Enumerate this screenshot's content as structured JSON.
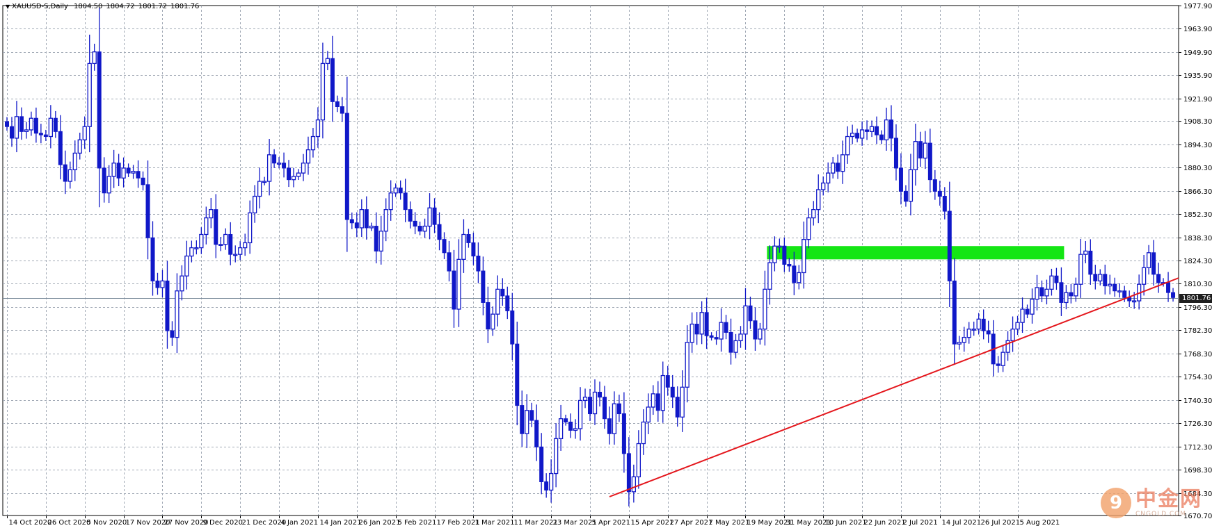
{
  "header": {
    "symbol": "XAUUSD-S,Daily",
    "open": "1804.50",
    "high": "1804.72",
    "low": "1801.72",
    "close": "1801.76"
  },
  "current_price_label": "1801.76",
  "watermark": {
    "cn": "中金网",
    "en": "CNGOLD.COM"
  },
  "colors": {
    "candle": "#1018c8",
    "grid": "#a0a8b4",
    "trendline": "#e4161c",
    "zone": "#14e614",
    "price_line": "#7a8a9a"
  },
  "chart_data": {
    "type": "candlestick",
    "ylim": [
      1670.7,
      1977.9
    ],
    "y_ticks": [
      "1977.90",
      "1963.90",
      "1949.90",
      "1935.90",
      "1921.90",
      "1908.30",
      "1894.30",
      "1880.30",
      "1866.30",
      "1852.30",
      "1838.30",
      "1824.30",
      "1810.30",
      "1796.30",
      "1782.30",
      "1768.30",
      "1754.30",
      "1740.30",
      "1726.30",
      "1712.30",
      "1698.30",
      "1684.30",
      "1670.70"
    ],
    "x_labels": [
      "14 Oct 2020",
      "26 Oct 2020",
      "5 Nov 2020",
      "17 Nov 2020",
      "27 Nov 2020",
      "9 Dec 2020",
      "21 Dec 2020",
      "4 Jan 2021",
      "14 Jan 2021",
      "26 Jan 2021",
      "5 Feb 2021",
      "17 Feb 2021",
      "1 Mar 2021",
      "11 Mar 2021",
      "23 Mar 2021",
      "5 Apr 2021",
      "15 Apr 2021",
      "27 Apr 2021",
      "7 May 2021",
      "19 May 2021",
      "31 May 2021",
      "10 Jun 2021",
      "22 Jun 2021",
      "2 Jul 2021",
      "14 Jul 2021",
      "26 Jul 2021",
      "5 Aug 2021"
    ],
    "current_price": 1801.76,
    "bars_per_label": 8,
    "closes": [
      1905,
      1898,
      1911,
      1902,
      1903,
      1910,
      1901,
      1900,
      1899,
      1910,
      1902,
      1882,
      1872,
      1879,
      1889,
      1897,
      1905,
      1943,
      1950,
      1880,
      1865,
      1875,
      1883,
      1874,
      1880,
      1877,
      1878,
      1874,
      1870,
      1838,
      1812,
      1808,
      1812,
      1782,
      1778,
      1806,
      1815,
      1827,
      1832,
      1832,
      1840,
      1850,
      1855,
      1834,
      1834,
      1840,
      1828,
      1828,
      1832,
      1835,
      1853,
      1863,
      1872,
      1872,
      1888,
      1883,
      1883,
      1880,
      1873,
      1875,
      1877,
      1883,
      1891,
      1899,
      1909,
      1943,
      1946,
      1920,
      1917,
      1913,
      1849,
      1847,
      1844,
      1855,
      1844,
      1845,
      1830,
      1842,
      1855,
      1865,
      1868,
      1865,
      1855,
      1848,
      1845,
      1842,
      1845,
      1856,
      1846,
      1837,
      1829,
      1818,
      1795,
      1825,
      1840,
      1835,
      1827,
      1818,
      1799,
      1783,
      1792,
      1807,
      1803,
      1794,
      1774,
      1737,
      1720,
      1734,
      1728,
      1712,
      1691,
      1686,
      1696,
      1717,
      1729,
      1727,
      1722,
      1723,
      1740,
      1742,
      1732,
      1745,
      1742,
      1729,
      1720,
      1738,
      1732,
      1708,
      1685,
      1694,
      1714,
      1727,
      1736,
      1744,
      1734,
      1755,
      1748,
      1742,
      1730,
      1748,
      1775,
      1786,
      1780,
      1793,
      1779,
      1778,
      1777,
      1787,
      1781,
      1769,
      1776,
      1780,
      1797,
      1788,
      1777,
      1783,
      1807,
      1823,
      1833,
      1833,
      1822,
      1821,
      1811,
      1817,
      1837,
      1850,
      1855,
      1867,
      1871,
      1877,
      1883,
      1878,
      1888,
      1899,
      1901,
      1898,
      1903,
      1902,
      1905,
      1900,
      1897,
      1909,
      1898,
      1880,
      1866,
      1860,
      1879,
      1896,
      1886,
      1895,
      1873,
      1866,
      1863,
      1854,
      1812,
      1774,
      1775,
      1778,
      1783,
      1783,
      1789,
      1782,
      1780,
      1762,
      1761,
      1769,
      1776,
      1783,
      1787,
      1795,
      1792,
      1801,
      1808,
      1803,
      1807,
      1815,
      1811,
      1799,
      1805,
      1803,
      1810,
      1828,
      1830,
      1816,
      1812,
      1816,
      1809,
      1810,
      1806,
      1806,
      1802,
      1800,
      1800,
      1810,
      1820,
      1829,
      1816,
      1811,
      1811,
      1805,
      1802
    ]
  },
  "annotations": {
    "resistance_zone": {
      "start_bar": 157,
      "end_bar": 217,
      "low": 1825,
      "high": 1833
    },
    "trendline": {
      "start_bar": 124,
      "start_price": 1682,
      "end_bar": 224,
      "end_price": 1794.5
    }
  }
}
